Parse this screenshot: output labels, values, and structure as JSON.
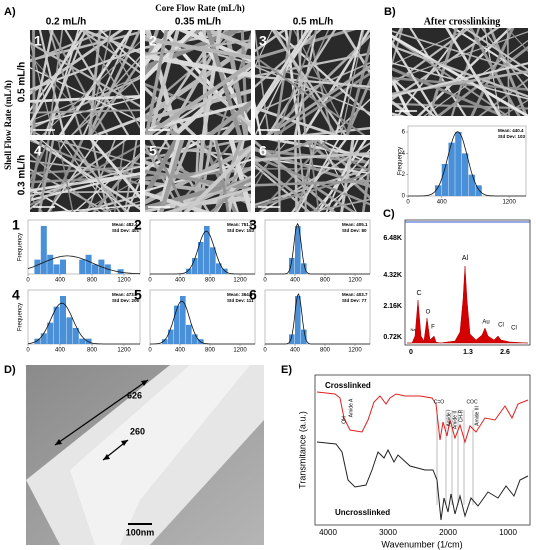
{
  "panel_a": {
    "label": "A)",
    "title": "Core Flow Rate (mL/h)",
    "columns": [
      "0.2 mL/h",
      "0.35 mL/h",
      "0.5 mL/h"
    ],
    "row_title": "Shell Flow Rate (mL/h)",
    "rows": [
      "0.5 mL/h",
      "0.3 mL/h"
    ],
    "images": [
      "1",
      "2",
      "3",
      "4",
      "5",
      "6"
    ],
    "hist_xticks": [
      0,
      400,
      800,
      1200
    ],
    "histograms": [
      {
        "label": "1",
        "stats": [
          "Mean: 482.4",
          "Std Dev: 401"
        ],
        "y_label": "Frequency",
        "counts": [
          0,
          3,
          10,
          4,
          2,
          3,
          0,
          0,
          3,
          4,
          2,
          3,
          2,
          0,
          1,
          0
        ]
      },
      {
        "label": "2",
        "stats": [
          "Mean: 751.5",
          "Std Dev: 153"
        ],
        "counts": [
          0,
          0,
          0,
          0,
          0,
          0,
          1,
          3,
          6,
          9,
          5,
          2,
          1,
          0,
          0,
          0
        ]
      },
      {
        "label": "3",
        "stats": [
          "Mean: 405.1",
          "Std Dev: 80"
        ],
        "counts": [
          0,
          0,
          0,
          0,
          3,
          9,
          2,
          0,
          0,
          0,
          0,
          0,
          0,
          0,
          0,
          0
        ]
      },
      {
        "label": "4",
        "stats": [
          "Mean: 473.2",
          "Std Dev: 206"
        ],
        "y_label": "Frequency",
        "counts": [
          0,
          1,
          2,
          4,
          7,
          9,
          5,
          3,
          1,
          1,
          0,
          0,
          0,
          0,
          0,
          0
        ]
      },
      {
        "label": "5",
        "stats": [
          "Mean: 364.4",
          "Std Dev: 111"
        ],
        "counts": [
          0,
          0,
          1,
          3,
          8,
          10,
          4,
          2,
          1,
          0,
          0,
          0,
          0,
          0,
          0,
          0
        ]
      },
      {
        "label": "6",
        "stats": [
          "Mean: 403.7",
          "Std Dev: 77"
        ],
        "counts": [
          0,
          0,
          0,
          0,
          2,
          10,
          3,
          0,
          0,
          0,
          0,
          0,
          0,
          0,
          0,
          0
        ]
      }
    ]
  },
  "panel_b": {
    "label": "B)",
    "title": "After crosslinking",
    "stats": [
      "Mean: 440.4",
      "Std Dev: 103"
    ],
    "y_label": "Frequency",
    "yticks": [
      0,
      2,
      4,
      6
    ],
    "xticks": [
      0,
      400,
      1200
    ],
    "counts": [
      0,
      0,
      0,
      0,
      1,
      3,
      5,
      6,
      4,
      2,
      1,
      0,
      0,
      0,
      0,
      0
    ]
  },
  "panel_c": {
    "label": "C)",
    "yticks": [
      "6.48K",
      "4.32K",
      "2.16K",
      "0.72K"
    ],
    "xticks": [
      "0",
      "1.3",
      "2.6"
    ],
    "peaks": [
      "C",
      "O",
      "Na",
      "F",
      "Al",
      "Au",
      "Cl",
      "Cl"
    ]
  },
  "panel_d": {
    "label": "D)",
    "measurements": [
      "626",
      "260"
    ],
    "scale_bar": "100nm"
  },
  "panel_e": {
    "label": "E)",
    "y_label": "Transmitance (a.u.)",
    "x_label": "Wavenumber (1/cm)",
    "xticks": [
      "4000",
      "3000",
      "2000",
      "1000"
    ],
    "curves": [
      "Crosslinked",
      "Uncrosslinked"
    ],
    "bands": [
      "OH",
      "Amide A",
      "C=O",
      "Amide I",
      "Amide II",
      "CH-R",
      "COC",
      "Amide III"
    ]
  }
}
